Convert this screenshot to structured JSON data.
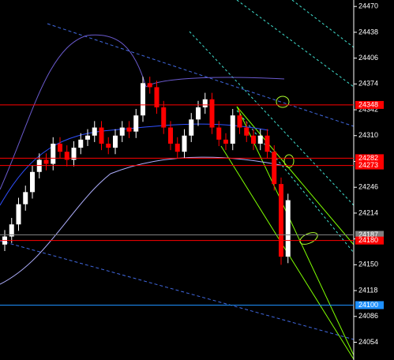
{
  "chart_data": {
    "type": "candlestick",
    "open": [
      24175,
      24185,
      24200,
      24225,
      24240,
      24265,
      24280,
      24275,
      24300,
      24290,
      24280,
      24295,
      24305,
      24310,
      24320,
      24300,
      24295,
      24310,
      24320,
      24315,
      24335,
      24375,
      24370,
      24345,
      24320,
      24300,
      24290,
      24310,
      24330,
      24345,
      24355,
      24320,
      24305,
      24300,
      24335,
      24320,
      24310,
      24300,
      24310,
      24290,
      24250,
      24160
    ],
    "high": [
      24193,
      24208,
      24233,
      24248,
      24273,
      24288,
      24288,
      24308,
      24308,
      24298,
      24303,
      24313,
      24318,
      24328,
      24328,
      24308,
      24318,
      24328,
      24328,
      24343,
      24383,
      24383,
      24378,
      24353,
      24328,
      24308,
      24318,
      24338,
      24353,
      24363,
      24363,
      24328,
      24313,
      24343,
      24343,
      24328,
      24318,
      24318,
      24318,
      24298,
      24258,
      24238
    ],
    "low": [
      24167,
      24177,
      24192,
      24217,
      24232,
      24257,
      24267,
      24267,
      24282,
      24272,
      24272,
      24287,
      24297,
      24302,
      24292,
      24287,
      24287,
      24302,
      24307,
      24307,
      24327,
      24362,
      24337,
      24312,
      24292,
      24282,
      24282,
      24302,
      24322,
      24337,
      24312,
      24297,
      24292,
      24292,
      24312,
      24302,
      24292,
      24292,
      24282,
      24242,
      24150,
      24152
    ],
    "close": [
      24185,
      24200,
      24225,
      24240,
      24265,
      24280,
      24275,
      24300,
      24290,
      24280,
      24295,
      24305,
      24310,
      24320,
      24300,
      24295,
      24310,
      24320,
      24315,
      24335,
      24375,
      24370,
      24345,
      24320,
      24300,
      24290,
      24310,
      24330,
      24345,
      24355,
      24320,
      24305,
      24300,
      24335,
      24320,
      24310,
      24300,
      24310,
      24290,
      24250,
      24160,
      24230
    ],
    "up_color": "#ffffff",
    "down_color": "#ff0000",
    "ylim": [
      24032,
      24478
    ],
    "yticks": [
      24470,
      24438,
      24406,
      24374,
      24342,
      24310,
      24278,
      24246,
      24214,
      24182,
      24150,
      24118,
      24086,
      24054
    ],
    "levels": [
      {
        "value": 24348,
        "color": "#ff0000"
      },
      {
        "value": 24282,
        "color": "#ff0000"
      },
      {
        "value": 24273,
        "color": "#ff0000"
      },
      {
        "value": 24187,
        "color": "#808080"
      },
      {
        "value": 24180,
        "color": "#ff0000"
      },
      {
        "value": 24100,
        "color": "#1e90ff"
      }
    ]
  }
}
